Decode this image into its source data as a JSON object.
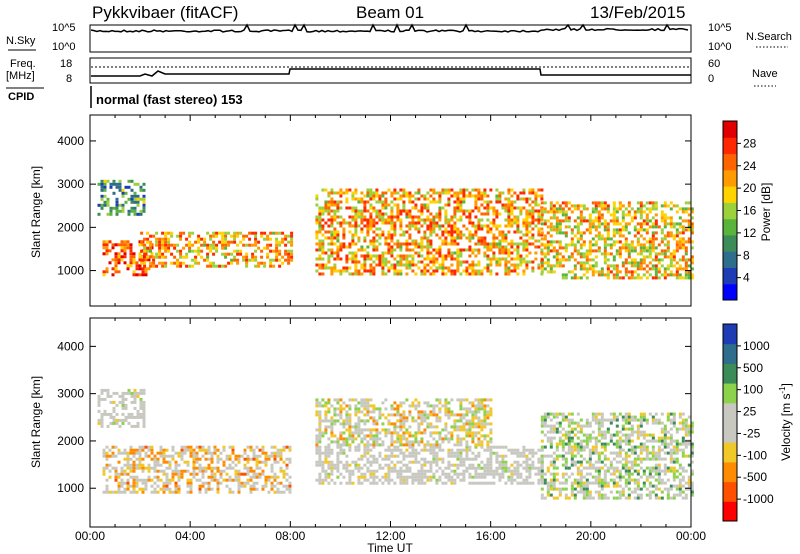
{
  "header": {
    "station": "Pykkvibaer (fitACF)",
    "beam": "Beam 01",
    "date": "13/Feb/2015"
  },
  "panels": {
    "nsky_label": "N.Sky",
    "nsearch_label": "N.Search",
    "nsky_ticks": [
      "10^5",
      "10^0"
    ],
    "nsearch_ticks": [
      "10^5",
      "10^0"
    ],
    "freq_label_1": "Freq.",
    "freq_label_2": "[MHz]",
    "freq_ticks": [
      "18",
      "8"
    ],
    "nave_label": "Nave",
    "nave_ticks": [
      "60",
      "0"
    ],
    "cpid_label": "CPID",
    "cpid_text": "normal (fast stereo) 153"
  },
  "colors": {
    "power": [
      "#0000ff",
      "#1e3cb4",
      "#2e6e8c",
      "#3c8c5a",
      "#5ab43c",
      "#9bd23c",
      "#ffd200",
      "#ff9a00",
      "#ff6400",
      "#ff2800",
      "#e10000"
    ],
    "velocity": [
      "#1e3cb4",
      "#2e6e8c",
      "#3c8c5a",
      "#8cd24b",
      "#c8c8c0",
      "#c8c8c0",
      "#f0c828",
      "#ff8c00",
      "#ff5000",
      "#ff0000"
    ],
    "ground_scatter": "#c8c8c0"
  },
  "chart_data": [
    {
      "type": "heatmap",
      "title": "Power",
      "xlabel": "Time UT",
      "ylabel": "Slant Range [km]",
      "x_tick_labels": [
        "00:00",
        "04:00",
        "08:00",
        "12:00",
        "16:00",
        "20:00",
        "00:00"
      ],
      "y_tick_labels": [
        "1000",
        "2000",
        "3000",
        "4000"
      ],
      "ylim": [
        180,
        4600
      ],
      "colorbar": {
        "label": "Power [dB]",
        "range": [
          0,
          32
        ],
        "tick_labels": [
          "4",
          "8",
          "12",
          "16",
          "20",
          "24",
          "28"
        ]
      },
      "scatter_bands": [
        {
          "t": [
            0.3,
            2.2
          ],
          "r": [
            2300,
            3100
          ],
          "mean_db": 10
        },
        {
          "t": [
            0.5,
            2.5
          ],
          "r": [
            900,
            1700
          ],
          "mean_db": 27
        },
        {
          "t": [
            2.0,
            8.0
          ],
          "r": [
            1100,
            1900
          ],
          "mean_db": 22
        },
        {
          "t": [
            9.0,
            18.0
          ],
          "r": [
            900,
            2900
          ],
          "mean_db": 22
        },
        {
          "t": [
            18.0,
            24.0
          ],
          "r": [
            800,
            2600
          ],
          "mean_db": 20
        }
      ]
    },
    {
      "type": "heatmap",
      "title": "Velocity",
      "xlabel": "Time UT",
      "ylabel": "Slant Range [km]",
      "x_tick_labels": [
        "00:00",
        "04:00",
        "08:00",
        "12:00",
        "16:00",
        "20:00",
        "00:00"
      ],
      "y_tick_labels": [
        "1000",
        "2000",
        "3000",
        "4000"
      ],
      "ylim": [
        180,
        4600
      ],
      "colorbar": {
        "label": "Velocity [m s-1]",
        "label_main": "Velocity [m s",
        "label_sup": "-1",
        "label_end": "]",
        "tick_labels": [
          "1000",
          "500",
          "100",
          "25",
          "-25",
          "-100",
          "-500",
          "-1000"
        ]
      },
      "scatter_bands": [
        {
          "t": [
            0.3,
            2.2
          ],
          "r": [
            2300,
            3100
          ],
          "mean_v": 0,
          "ground": true
        },
        {
          "t": [
            0.5,
            8.0
          ],
          "r": [
            900,
            1900
          ],
          "mean_v": -250
        },
        {
          "t": [
            9.0,
            18.0
          ],
          "r": [
            1100,
            1900
          ],
          "mean_v": 0,
          "ground": true
        },
        {
          "t": [
            9.0,
            16.0
          ],
          "r": [
            1900,
            2900
          ],
          "mean_v": -100
        },
        {
          "t": [
            18.0,
            24.0
          ],
          "r": [
            800,
            2600
          ],
          "mean_v": 100
        }
      ]
    }
  ]
}
